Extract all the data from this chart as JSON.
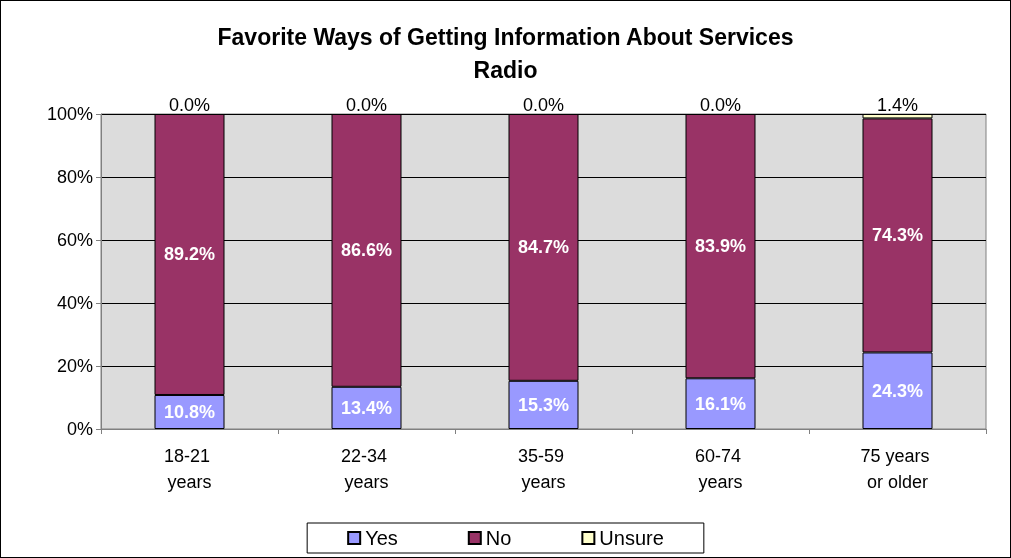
{
  "chart_data": {
    "type": "bar",
    "stacked": true,
    "title": "Favorite Ways of Getting Information About Services",
    "subtitle": "Radio",
    "categories": [
      "18-21 years",
      "22-34 years",
      "35-59 years",
      "60-74 years",
      "75 years or older"
    ],
    "series": [
      {
        "name": "Yes",
        "color": "#9999ff",
        "values": [
          10.8,
          13.4,
          15.3,
          16.1,
          24.3
        ],
        "value_labels": [
          "10.8%",
          "13.4%",
          "15.3%",
          "16.1%",
          "24.3%"
        ]
      },
      {
        "name": "No",
        "color": "#993366",
        "values": [
          89.2,
          86.6,
          84.7,
          83.9,
          74.3
        ],
        "value_labels": [
          "89.2%",
          "86.6%",
          "84.7%",
          "83.9%",
          "74.3%"
        ]
      },
      {
        "name": "Unsure",
        "color": "#ffffcc",
        "values": [
          0.0,
          0.0,
          0.0,
          0.0,
          1.4
        ],
        "value_labels": [
          "0.0%",
          "0.0%",
          "0.0%",
          "0.0%",
          "1.4%"
        ]
      }
    ],
    "ylim": [
      0,
      100
    ],
    "yticks": [
      {
        "value": 0,
        "label": "0%"
      },
      {
        "value": 20,
        "label": "20%"
      },
      {
        "value": 40,
        "label": "40%"
      },
      {
        "value": 60,
        "label": "60%"
      },
      {
        "value": 80,
        "label": "80%"
      },
      {
        "value": 100,
        "label": "100%"
      }
    ],
    "grid": "y",
    "legend": "bottom"
  }
}
